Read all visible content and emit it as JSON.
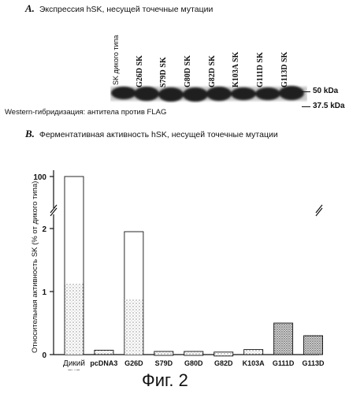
{
  "panel_a": {
    "letter": "A.",
    "title": "Экспрессия hSK, несущей точечные мутации",
    "lanes": [
      "SK дикого типа",
      "G26D SK",
      "S79D SK",
      "G80D SK",
      "G82D SK",
      "K103A SK",
      "G111D SK",
      "G113D SK"
    ],
    "markers": [
      "50 kDa",
      "37.5 kDa"
    ],
    "western_caption": "Western-гибридизация: антитела против FLAG"
  },
  "panel_b": {
    "letter": "B.",
    "title": "Ферментативная активность hSK, несущей точечные мутации"
  },
  "chart_data": {
    "type": "bar",
    "categories": [
      "Дикий тип",
      "pcDNA3",
      "G26D",
      "S79D",
      "G80D",
      "G82D",
      "K103A",
      "G111D",
      "G113D"
    ],
    "values": [
      100,
      0.07,
      1.95,
      0.05,
      0.05,
      0.04,
      0.08,
      0.5,
      0.3
    ],
    "ylabel": "Относительная активность SK (% от дикого типа)",
    "y_ticks": [
      "0",
      "1",
      "2",
      "100"
    ],
    "axis_break": [
      2.1,
      99
    ],
    "ylim": [
      0,
      100
    ]
  },
  "figure_caption": "Фиг. 2"
}
